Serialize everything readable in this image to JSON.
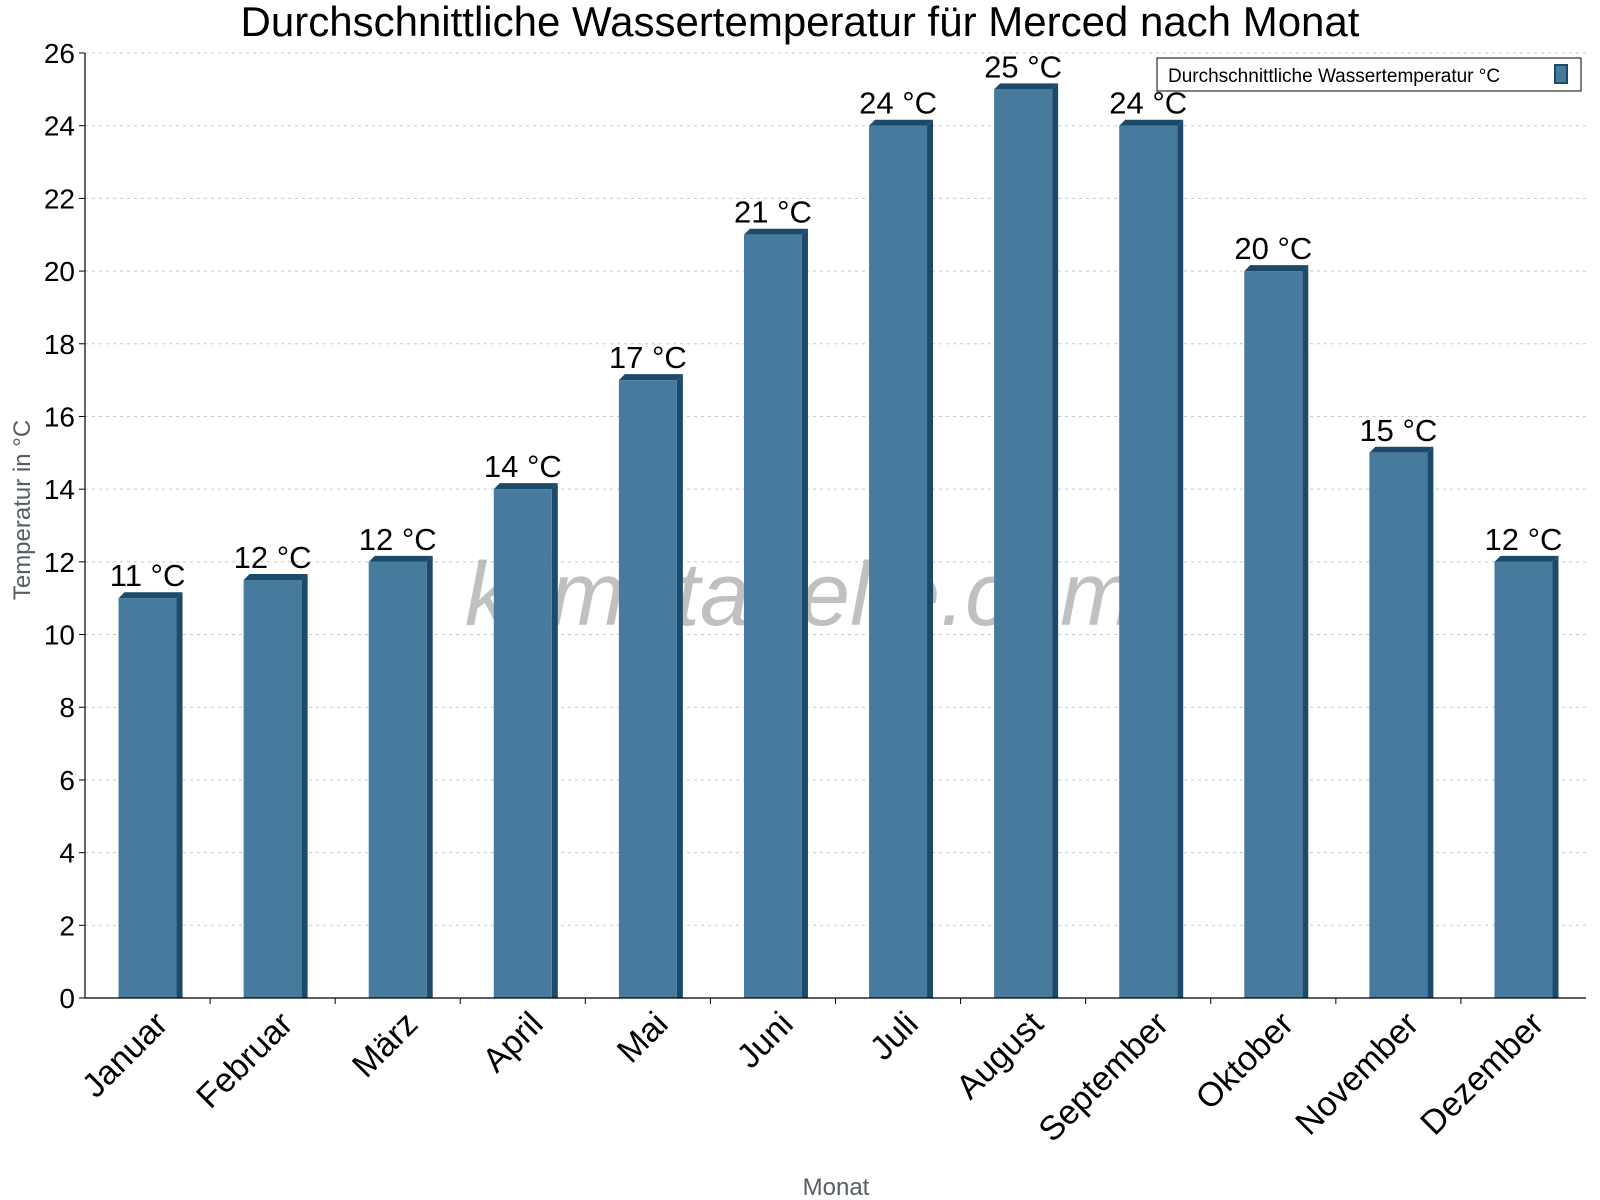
{
  "chart_data": {
    "type": "bar",
    "title": "Durchschnittliche Wassertemperatur für Merced nach Monat",
    "xlabel": "Monat",
    "ylabel": "Temperatur in °C",
    "ylim": [
      0,
      26
    ],
    "y_ticks": [
      "0",
      "2",
      "4",
      "6",
      "8",
      "10",
      "12",
      "14",
      "16",
      "18",
      "20",
      "22",
      "24",
      "26"
    ],
    "grid": true,
    "legend_position": "top-right",
    "categories": [
      "Januar",
      "Februar",
      "März",
      "April",
      "Mai",
      "Juni",
      "Juli",
      "August",
      "September",
      "Oktober",
      "November",
      "Dezember"
    ],
    "series": [
      {
        "name": "Durchschnittliche Wassertemperatur °C",
        "values": [
          11,
          11.5,
          12,
          14,
          17,
          21,
          24,
          25,
          24,
          20,
          15,
          12
        ],
        "labels": [
          "11 °C",
          "12 °C",
          "12 °C",
          "14 °C",
          "17 °C",
          "21 °C",
          "24 °C",
          "25 °C",
          "24 °C",
          "20 °C",
          "15 °C",
          "12 °C"
        ],
        "color": "#467b9e",
        "edge_color": "#1c4a6b"
      }
    ],
    "watermark": "klimatabelle.com"
  }
}
